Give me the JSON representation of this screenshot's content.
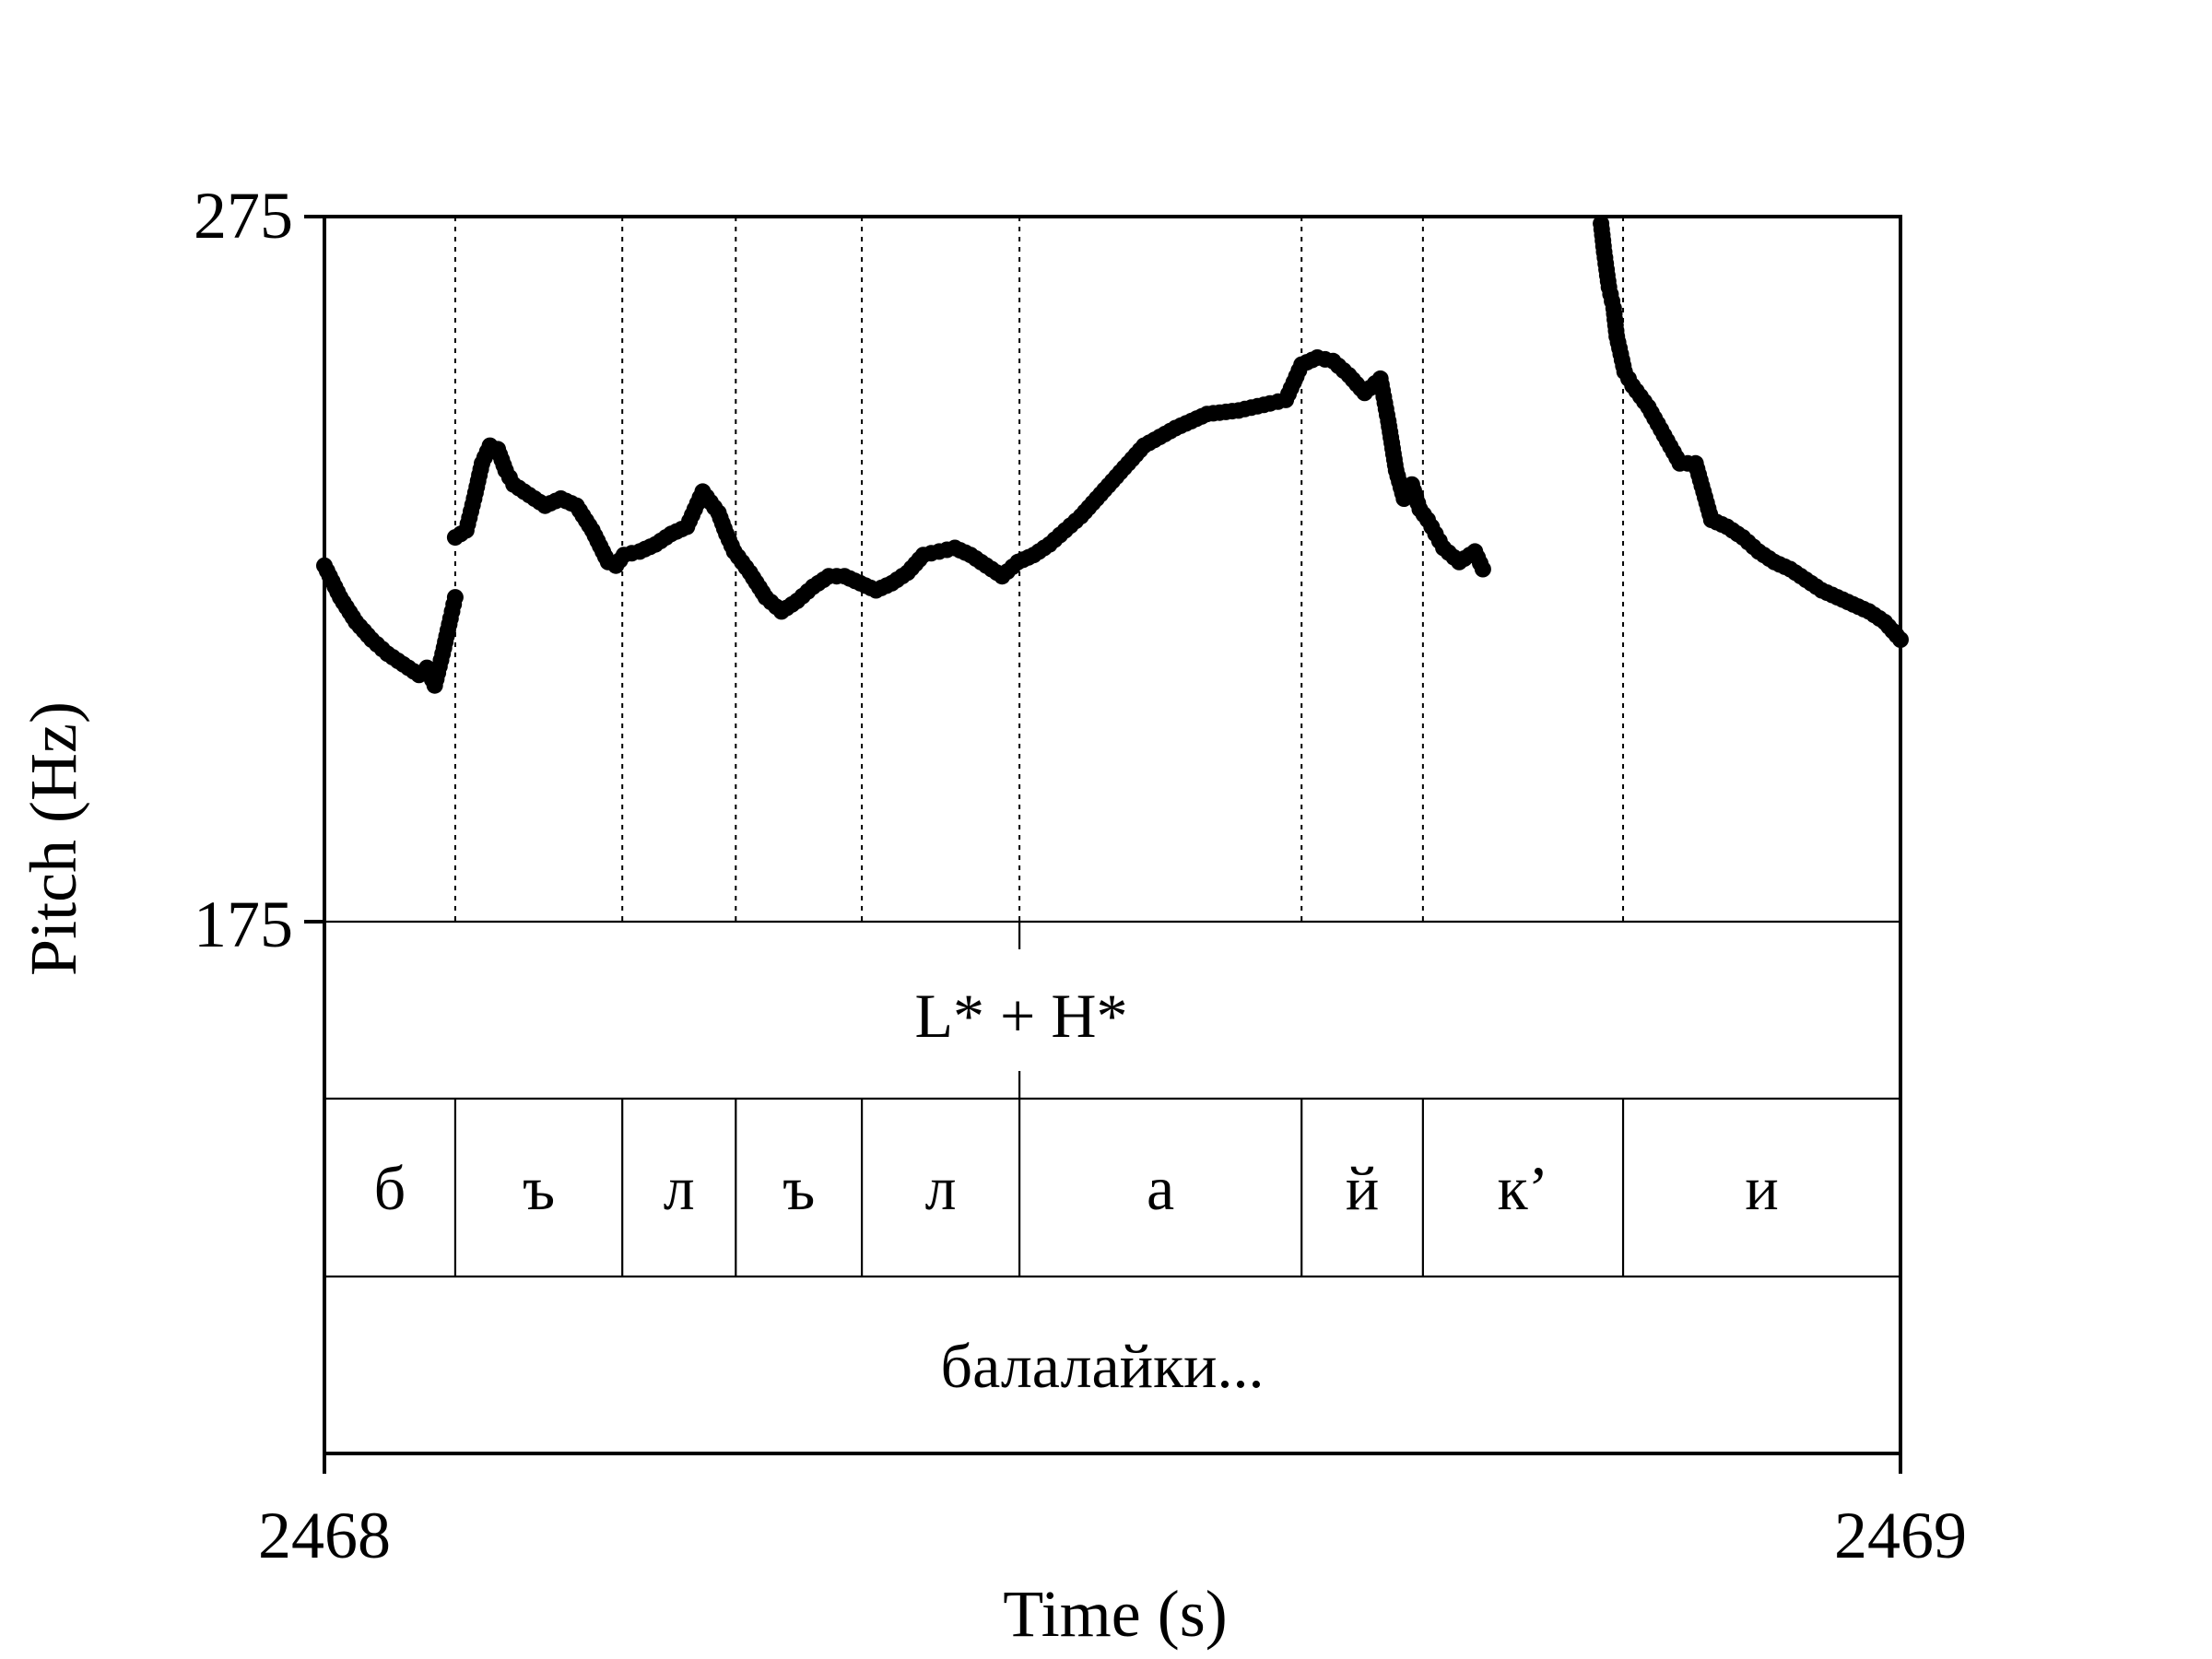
{
  "chart_data": {
    "type": "scatter",
    "xlabel": "Time (s)",
    "ylabel": "Pitch (Hz)",
    "xlim": [
      2468,
      2469
    ],
    "ylim": [
      175,
      275
    ],
    "x_ticks": [
      "2468",
      "2469"
    ],
    "y_ticks": [
      "275",
      "175"
    ],
    "grid": false,
    "tiers": {
      "tone": {
        "label": "L* + H*",
        "boundary": 2468.441
      },
      "segments": {
        "boundaries": [
          2468.0,
          2468.083,
          2468.189,
          2468.261,
          2468.341,
          2468.441,
          2468.62,
          2468.697,
          2468.824,
          2469.0
        ],
        "labels": [
          "б",
          "ъ",
          "л",
          "ъ",
          "л",
          "а",
          "й",
          "к’",
          "и"
        ]
      },
      "word": {
        "label": "балалайки..."
      }
    },
    "series": [
      {
        "x": [
          2468.0,
          2468.01,
          2468.02,
          2468.03,
          2468.04,
          2468.05,
          2468.06,
          2468.065,
          2468.07,
          2468.075,
          2468.08,
          2468.083
        ],
        "y": [
          225.5,
          221,
          217.5,
          215,
          213,
          211.5,
          210,
          211,
          208.5,
          213,
          218,
          221
        ]
      },
      {
        "x": [
          2468.083,
          2468.09,
          2468.095,
          2468.1,
          2468.105,
          2468.11,
          2468.115,
          2468.12,
          2468.13,
          2468.14,
          2468.15,
          2468.16,
          2468.17,
          2468.18,
          2468.185,
          2468.19,
          2468.2,
          2468.21,
          2468.22,
          2468.23,
          2468.24,
          2468.25,
          2468.255,
          2468.26,
          2468.27,
          2468.28,
          2468.29,
          2468.3,
          2468.31,
          2468.32,
          2468.33,
          2468.34,
          2468.35,
          2468.36,
          2468.37,
          2468.38,
          2468.39,
          2468.4,
          2468.41,
          2468.42,
          2468.43,
          2468.44,
          2468.45,
          2468.46,
          2468.47,
          2468.48,
          2468.49,
          2468.5,
          2468.52,
          2468.54,
          2468.56,
          2468.58,
          2468.6,
          2468.61,
          2468.62,
          2468.63,
          2468.64,
          2468.65,
          2468.66,
          2468.67,
          2468.675,
          2468.68,
          2468.685,
          2468.69,
          2468.695,
          2468.7,
          2468.705,
          2468.71,
          2468.72,
          2468.73,
          2468.735
        ],
        "y": [
          229.5,
          230.5,
          235,
          240,
          242.5,
          242,
          239,
          237,
          235.5,
          234,
          235,
          234,
          230.5,
          226,
          225.5,
          227,
          227.5,
          228.5,
          230,
          231,
          236,
          233,
          230,
          227.5,
          224.5,
          221,
          219,
          220.5,
          222.5,
          224,
          224,
          223,
          222,
          223,
          224.5,
          227,
          227.5,
          228,
          227,
          225.5,
          224,
          226,
          227,
          228.5,
          230.5,
          232.5,
          235,
          237.5,
          242.5,
          245,
          247,
          247.5,
          248.5,
          249,
          254,
          255,
          254.5,
          252.5,
          250,
          252,
          246,
          239,
          235,
          237,
          233.5,
          232,
          230,
          228,
          226,
          227.5,
          225
        ]
      },
      {
        "x": [
          2468.81,
          2468.812,
          2468.815,
          2468.818,
          2468.82,
          2468.825,
          2468.83,
          2468.84,
          2468.85,
          2468.86,
          2468.87,
          2468.875,
          2468.88,
          2468.89,
          2468.9,
          2468.91,
          2468.92,
          2468.93,
          2468.94,
          2468.95,
          2468.96,
          2468.97,
          2468.98,
          2468.99,
          2469.0
        ],
        "y": [
          274,
          270,
          265,
          262,
          258,
          253,
          251,
          248,
          244,
          240,
          240,
          236,
          232,
          231,
          229.5,
          227.5,
          226,
          225,
          223.5,
          222,
          221,
          220,
          219,
          217.5,
          215
        ]
      }
    ]
  }
}
